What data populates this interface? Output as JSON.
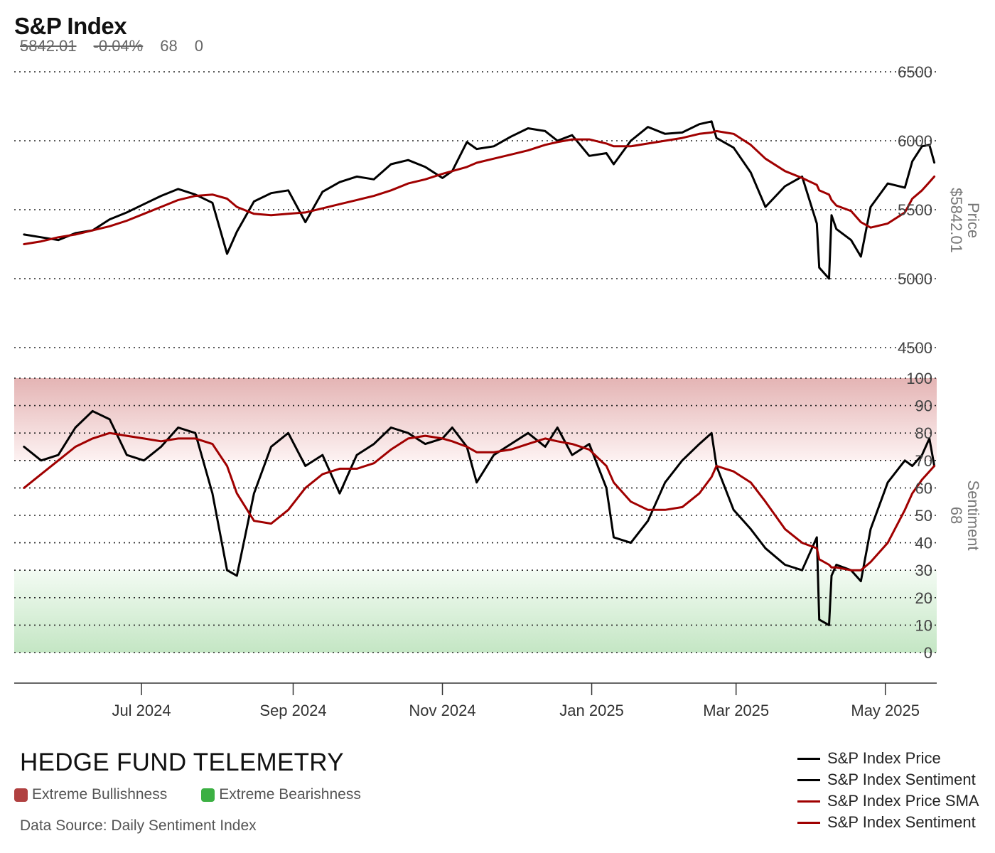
{
  "header": {
    "title": "S&P Index",
    "last_price": "5842.01",
    "change_pct": "-0.04%",
    "sentiment": "68",
    "extra": "0"
  },
  "footer": {
    "brand": "HEDGE FUND TELEMETRY",
    "zone_bull_label": "Extreme Bullishness",
    "zone_bear_label": "Extreme Bearishness",
    "zone_bull_color": "#b04040",
    "zone_bear_color": "#3cb043",
    "source": "Data Source: Daily Sentiment Index"
  },
  "legend": {
    "items": [
      {
        "label": "S&P Index Price",
        "color": "#000000"
      },
      {
        "label": "S&P Index Sentiment",
        "color": "#000000"
      },
      {
        "label": "S&P Index Price SMA",
        "color": "#a00000"
      },
      {
        "label": "S&P Index Sentiment",
        "color": "#a00000"
      }
    ]
  },
  "chart_data": [
    {
      "type": "line",
      "panel": "price",
      "ylabel": "Price",
      "ylabel_value": "$5842.01",
      "ylim": [
        4500,
        6500
      ],
      "yticks": [
        4500,
        5000,
        5500,
        6000,
        6500
      ],
      "grid": true,
      "x": [
        "2024-05-14",
        "2024-05-21",
        "2024-05-28",
        "2024-06-04",
        "2024-06-11",
        "2024-06-18",
        "2024-06-25",
        "2024-07-02",
        "2024-07-09",
        "2024-07-16",
        "2024-07-23",
        "2024-07-30",
        "2024-08-05",
        "2024-08-09",
        "2024-08-16",
        "2024-08-23",
        "2024-08-30",
        "2024-09-06",
        "2024-09-13",
        "2024-09-20",
        "2024-09-27",
        "2024-10-04",
        "2024-10-11",
        "2024-10-18",
        "2024-10-25",
        "2024-11-01",
        "2024-11-05",
        "2024-11-11",
        "2024-11-15",
        "2024-11-22",
        "2024-11-29",
        "2024-12-06",
        "2024-12-13",
        "2024-12-18",
        "2024-12-24",
        "2024-12-31",
        "2025-01-07",
        "2025-01-10",
        "2025-01-17",
        "2025-01-24",
        "2025-01-31",
        "2025-02-07",
        "2025-02-14",
        "2025-02-19",
        "2025-02-21",
        "2025-02-28",
        "2025-03-07",
        "2025-03-13",
        "2025-03-21",
        "2025-03-28",
        "2025-04-03",
        "2025-04-04",
        "2025-04-08",
        "2025-04-09",
        "2025-04-11",
        "2025-04-17",
        "2025-04-21",
        "2025-04-25",
        "2025-05-02",
        "2025-05-09",
        "2025-05-12",
        "2025-05-16",
        "2025-05-19",
        "2025-05-21"
      ],
      "series": [
        {
          "name": "S&P Index Price",
          "color": "#000000",
          "values": [
            5320,
            5300,
            5280,
            5330,
            5350,
            5430,
            5480,
            5540,
            5600,
            5650,
            5610,
            5550,
            5180,
            5340,
            5560,
            5620,
            5640,
            5410,
            5630,
            5700,
            5740,
            5720,
            5830,
            5860,
            5810,
            5730,
            5780,
            5990,
            5940,
            5960,
            6030,
            6090,
            6070,
            6000,
            6040,
            5890,
            5910,
            5830,
            6000,
            6100,
            6050,
            6060,
            6120,
            6140,
            6020,
            5950,
            5770,
            5520,
            5670,
            5740,
            5400,
            5080,
            5000,
            5460,
            5360,
            5280,
            5160,
            5520,
            5690,
            5660,
            5850,
            5960,
            5970,
            5842
          ]
        },
        {
          "name": "S&P Index Price SMA",
          "color": "#a00000",
          "values": [
            5250,
            5270,
            5300,
            5320,
            5350,
            5380,
            5420,
            5470,
            5520,
            5570,
            5600,
            5610,
            5580,
            5520,
            5470,
            5460,
            5470,
            5480,
            5510,
            5540,
            5570,
            5600,
            5640,
            5690,
            5720,
            5760,
            5780,
            5810,
            5840,
            5870,
            5900,
            5930,
            5970,
            5990,
            6010,
            6010,
            5980,
            5960,
            5960,
            5980,
            6000,
            6020,
            6050,
            6060,
            6070,
            6050,
            5970,
            5870,
            5780,
            5730,
            5680,
            5640,
            5610,
            5570,
            5530,
            5490,
            5410,
            5370,
            5400,
            5480,
            5580,
            5640,
            5700,
            5740
          ]
        }
      ]
    },
    {
      "type": "line",
      "panel": "sentiment",
      "ylabel": "Sentiment",
      "ylabel_value": "68",
      "ylim": [
        0,
        100
      ],
      "yticks": [
        0,
        10,
        20,
        30,
        40,
        50,
        60,
        70,
        80,
        90,
        100
      ],
      "zones": [
        {
          "label": "Extreme Bullishness",
          "from": 70,
          "to": 100
        },
        {
          "label": "Extreme Bearishness",
          "from": 0,
          "to": 30
        }
      ],
      "grid": true,
      "x": [
        "2024-05-14",
        "2024-05-21",
        "2024-05-28",
        "2024-06-04",
        "2024-06-11",
        "2024-06-18",
        "2024-06-25",
        "2024-07-02",
        "2024-07-09",
        "2024-07-16",
        "2024-07-23",
        "2024-07-30",
        "2024-08-05",
        "2024-08-09",
        "2024-08-16",
        "2024-08-23",
        "2024-08-30",
        "2024-09-06",
        "2024-09-13",
        "2024-09-20",
        "2024-09-27",
        "2024-10-04",
        "2024-10-11",
        "2024-10-18",
        "2024-10-25",
        "2024-11-01",
        "2024-11-05",
        "2024-11-11",
        "2024-11-15",
        "2024-11-22",
        "2024-11-29",
        "2024-12-06",
        "2024-12-13",
        "2024-12-18",
        "2024-12-24",
        "2024-12-31",
        "2025-01-07",
        "2025-01-10",
        "2025-01-17",
        "2025-01-24",
        "2025-01-31",
        "2025-02-07",
        "2025-02-14",
        "2025-02-19",
        "2025-02-21",
        "2025-02-28",
        "2025-03-07",
        "2025-03-13",
        "2025-03-21",
        "2025-03-28",
        "2025-04-03",
        "2025-04-04",
        "2025-04-08",
        "2025-04-09",
        "2025-04-11",
        "2025-04-17",
        "2025-04-21",
        "2025-04-25",
        "2025-05-02",
        "2025-05-09",
        "2025-05-12",
        "2025-05-16",
        "2025-05-19",
        "2025-05-21"
      ],
      "series": [
        {
          "name": "S&P Index Sentiment",
          "color": "#000000",
          "values": [
            75,
            70,
            72,
            82,
            88,
            85,
            72,
            70,
            75,
            82,
            80,
            58,
            30,
            28,
            58,
            75,
            80,
            68,
            72,
            58,
            72,
            76,
            82,
            80,
            76,
            78,
            82,
            75,
            62,
            72,
            76,
            80,
            75,
            82,
            72,
            76,
            60,
            42,
            40,
            48,
            62,
            70,
            76,
            80,
            68,
            52,
            45,
            38,
            32,
            30,
            42,
            12,
            10,
            28,
            32,
            30,
            26,
            45,
            62,
            70,
            68,
            72,
            78,
            68
          ]
        },
        {
          "name": "S&P Index Sentiment",
          "color": "#a00000",
          "values": [
            60,
            65,
            70,
            75,
            78,
            80,
            79,
            78,
            77,
            78,
            78,
            76,
            68,
            58,
            48,
            47,
            52,
            60,
            65,
            67,
            67,
            69,
            74,
            78,
            79,
            78,
            77,
            75,
            73,
            73,
            74,
            76,
            78,
            77,
            76,
            74,
            68,
            62,
            55,
            52,
            52,
            53,
            58,
            64,
            68,
            66,
            62,
            55,
            45,
            40,
            38,
            34,
            32,
            31,
            31,
            30,
            30,
            33,
            40,
            52,
            58,
            63,
            66,
            68
          ]
        }
      ]
    }
  ],
  "xaxis": {
    "ticks": [
      {
        "date": "2024-07-01",
        "label": "Jul 2024"
      },
      {
        "date": "2024-09-01",
        "label": "Sep 2024"
      },
      {
        "date": "2024-11-01",
        "label": "Nov 2024"
      },
      {
        "date": "2025-01-01",
        "label": "Jan 2025"
      },
      {
        "date": "2025-03-01",
        "label": "Mar 2025"
      },
      {
        "date": "2025-05-01",
        "label": "May 2025"
      }
    ]
  }
}
